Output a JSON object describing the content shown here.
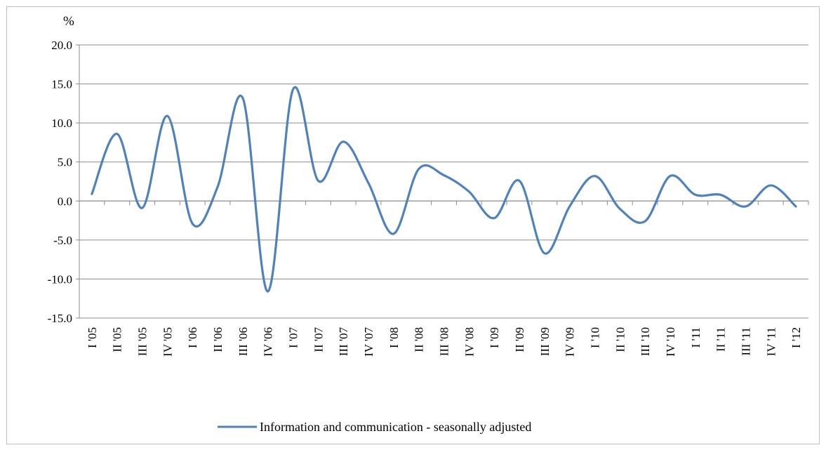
{
  "chart_data": {
    "type": "line",
    "unit_label": "%",
    "categories": [
      "I '05",
      "II '05",
      "III '05",
      "IV '05",
      "I '06",
      "II '06",
      "III '06",
      "IV '06",
      "I '07",
      "II '07",
      "III '07",
      "IV '07",
      "I '08",
      "II '08",
      "III '08",
      "IV '08",
      "I '09",
      "II '09",
      "III '09",
      "IV '09",
      "I '10",
      "II '10",
      "III '10",
      "IV '10",
      "I '11",
      "II '11",
      "III '11",
      "IV '11",
      "I '12"
    ],
    "series": [
      {
        "name": "Information and communication - seasonally adjusted",
        "color": "#4f81bd",
        "values": [
          0.9,
          8.6,
          -0.9,
          10.9,
          -2.9,
          1.8,
          13.2,
          -11.6,
          14.3,
          2.6,
          7.6,
          2.3,
          -4.2,
          4.1,
          3.3,
          1.2,
          -2.2,
          2.6,
          -6.7,
          -0.7,
          3.2,
          -1.0,
          -2.6,
          3.2,
          0.8,
          0.8,
          -0.7,
          2.0,
          -0.7
        ]
      }
    ],
    "ylim": [
      -15.0,
      20.0
    ],
    "yticks": [
      "-15.0",
      "-10.0",
      "-5.0",
      "0.0",
      "5.0",
      "10.0",
      "15.0",
      "20.0"
    ],
    "grid": true,
    "legend_position": "bottom"
  }
}
